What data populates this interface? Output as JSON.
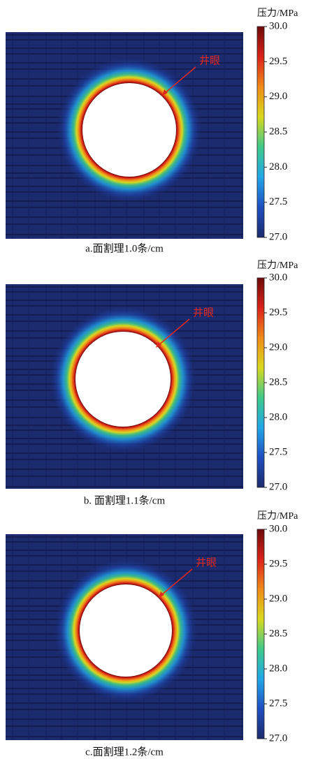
{
  "chart_data": [
    {
      "type": "contour",
      "title": "a.面割理1.0条/cm",
      "colorbar_label": "压力/MPa",
      "annotation": "井眼",
      "zlim": [
        27,
        30
      ],
      "zticks": [
        {
          "value": 27,
          "label": "27.0"
        },
        {
          "value": 27.5,
          "label": "27.5"
        },
        {
          "value": 28,
          "label": "28.0"
        },
        {
          "value": 28.5,
          "label": "28.5"
        },
        {
          "value": 29,
          "label": "29.0"
        },
        {
          "value": 29.5,
          "label": "29.5"
        },
        {
          "value": 30,
          "label": "30.0"
        }
      ],
      "colors": [
        "#1c2a6e",
        "#1f4fc0",
        "#22a6e8",
        "#3fc98a",
        "#d8d820",
        "#f08a1a",
        "#d8231a",
        "#6e0a0a"
      ]
    },
    {
      "type": "contour",
      "title": "b. 面割理1.1条/cm",
      "colorbar_label": "压力/MPa",
      "annotation": "井眼",
      "zlim": [
        27,
        30
      ],
      "zticks": [
        {
          "value": 27,
          "label": "27.0"
        },
        {
          "value": 27.5,
          "label": "27.5"
        },
        {
          "value": 28,
          "label": "28.0"
        },
        {
          "value": 28.5,
          "label": "28.5"
        },
        {
          "value": 29,
          "label": "29.0"
        },
        {
          "value": 29.5,
          "label": "29.5"
        },
        {
          "value": 30,
          "label": "30.0"
        }
      ],
      "colors": [
        "#1c2a6e",
        "#1f4fc0",
        "#22a6e8",
        "#3fc98a",
        "#d8d820",
        "#f08a1a",
        "#d8231a",
        "#6e0a0a"
      ]
    },
    {
      "type": "contour",
      "title": "c.面割理1.2条/cm",
      "colorbar_label": "压力/MPa",
      "annotation": "井眼",
      "zlim": [
        27,
        30
      ],
      "zticks": [
        {
          "value": 27,
          "label": "27.0"
        },
        {
          "value": 27.5,
          "label": "27.5"
        },
        {
          "value": 28,
          "label": "28.0"
        },
        {
          "value": 28.5,
          "label": "28.5"
        },
        {
          "value": 29,
          "label": "29.0"
        },
        {
          "value": 29.5,
          "label": "29.5"
        },
        {
          "value": 30,
          "label": "30.0"
        }
      ],
      "colors": [
        "#1c2a6e",
        "#1f4fc0",
        "#22a6e8",
        "#3fc98a",
        "#d8d820",
        "#f08a1a",
        "#d8231a",
        "#6e0a0a"
      ]
    }
  ]
}
